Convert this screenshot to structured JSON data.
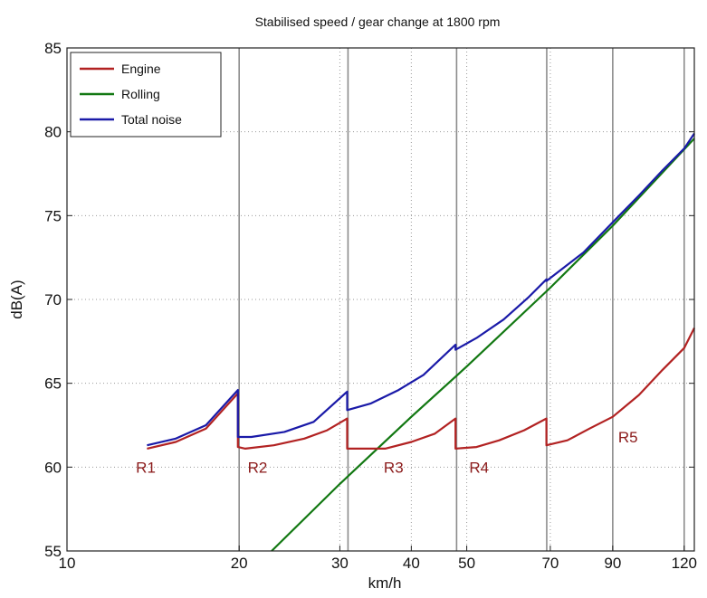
{
  "chart_data": {
    "type": "line",
    "title": "Stabilised speed / gear change at 1800 rpm",
    "xlabel": "km/h",
    "ylabel": "dB(A)",
    "xscale": "log",
    "xlim": [
      10,
      125
    ],
    "ylim": [
      55,
      85
    ],
    "xticks": [
      10,
      20,
      30,
      40,
      50,
      70,
      90,
      120
    ],
    "yticks": [
      55,
      60,
      65,
      70,
      75,
      80,
      85
    ],
    "grid": "dotted horizontal",
    "gear_change_speeds": [
      20,
      31,
      48,
      69,
      90,
      120
    ],
    "gear_labels": [
      {
        "text": "R1",
        "x": 13.2,
        "y": 60
      },
      {
        "text": "R2",
        "x": 20.7,
        "y": 60
      },
      {
        "text": "R3",
        "x": 35.8,
        "y": 60
      },
      {
        "text": "R4",
        "x": 50.5,
        "y": 60
      },
      {
        "text": "R5",
        "x": 92,
        "y": 61.8
      }
    ],
    "legend": {
      "placement": "top-left",
      "entries": [
        "Engine",
        "Rolling",
        "Total noise"
      ]
    },
    "series": [
      {
        "name": "Engine",
        "color": "#b22222",
        "points": [
          [
            13.8,
            61.1
          ],
          [
            15.5,
            61.5
          ],
          [
            17.5,
            62.3
          ],
          [
            19.9,
            64.4
          ],
          [
            19.9,
            61.2
          ],
          [
            20.5,
            61.1
          ],
          [
            23,
            61.3
          ],
          [
            26,
            61.7
          ],
          [
            28.5,
            62.2
          ],
          [
            30.9,
            62.9
          ],
          [
            30.9,
            61.1
          ],
          [
            33,
            61.1
          ],
          [
            36,
            61.1
          ],
          [
            40,
            61.5
          ],
          [
            44,
            62.0
          ],
          [
            47.8,
            62.9
          ],
          [
            47.8,
            61.1
          ],
          [
            52,
            61.2
          ],
          [
            57,
            61.6
          ],
          [
            63,
            62.2
          ],
          [
            68.9,
            62.9
          ],
          [
            68.9,
            61.3
          ],
          [
            75,
            61.6
          ],
          [
            82,
            62.3
          ],
          [
            90,
            63.0
          ],
          [
            100,
            64.3
          ],
          [
            110,
            65.8
          ],
          [
            120,
            67.1
          ],
          [
            125,
            68.3
          ]
        ]
      },
      {
        "name": "Rolling",
        "color": "#127812",
        "points": [
          [
            22.8,
            55
          ],
          [
            30,
            59.0
          ],
          [
            40,
            63.0
          ],
          [
            50,
            66.0
          ],
          [
            70,
            70.7
          ],
          [
            90,
            74.4
          ],
          [
            125,
            79.6
          ]
        ]
      },
      {
        "name": "Total noise",
        "color": "#1a1aa8",
        "points": [
          [
            13.8,
            61.3
          ],
          [
            15.5,
            61.7
          ],
          [
            17.5,
            62.5
          ],
          [
            19.9,
            64.6
          ],
          [
            19.9,
            61.8
          ],
          [
            21,
            61.8
          ],
          [
            24,
            62.1
          ],
          [
            27,
            62.7
          ],
          [
            30.9,
            64.5
          ],
          [
            30.9,
            63.4
          ],
          [
            34,
            63.8
          ],
          [
            38,
            64.6
          ],
          [
            42,
            65.5
          ],
          [
            47.8,
            67.3
          ],
          [
            47.8,
            67.0
          ],
          [
            52,
            67.7
          ],
          [
            58,
            68.8
          ],
          [
            64,
            70.1
          ],
          [
            68.9,
            71.2
          ],
          [
            68.9,
            71.1
          ],
          [
            80,
            72.8
          ],
          [
            90,
            74.6
          ],
          [
            100,
            76.2
          ],
          [
            110,
            77.7
          ],
          [
            120,
            79.0
          ],
          [
            125,
            79.9
          ]
        ]
      }
    ]
  }
}
